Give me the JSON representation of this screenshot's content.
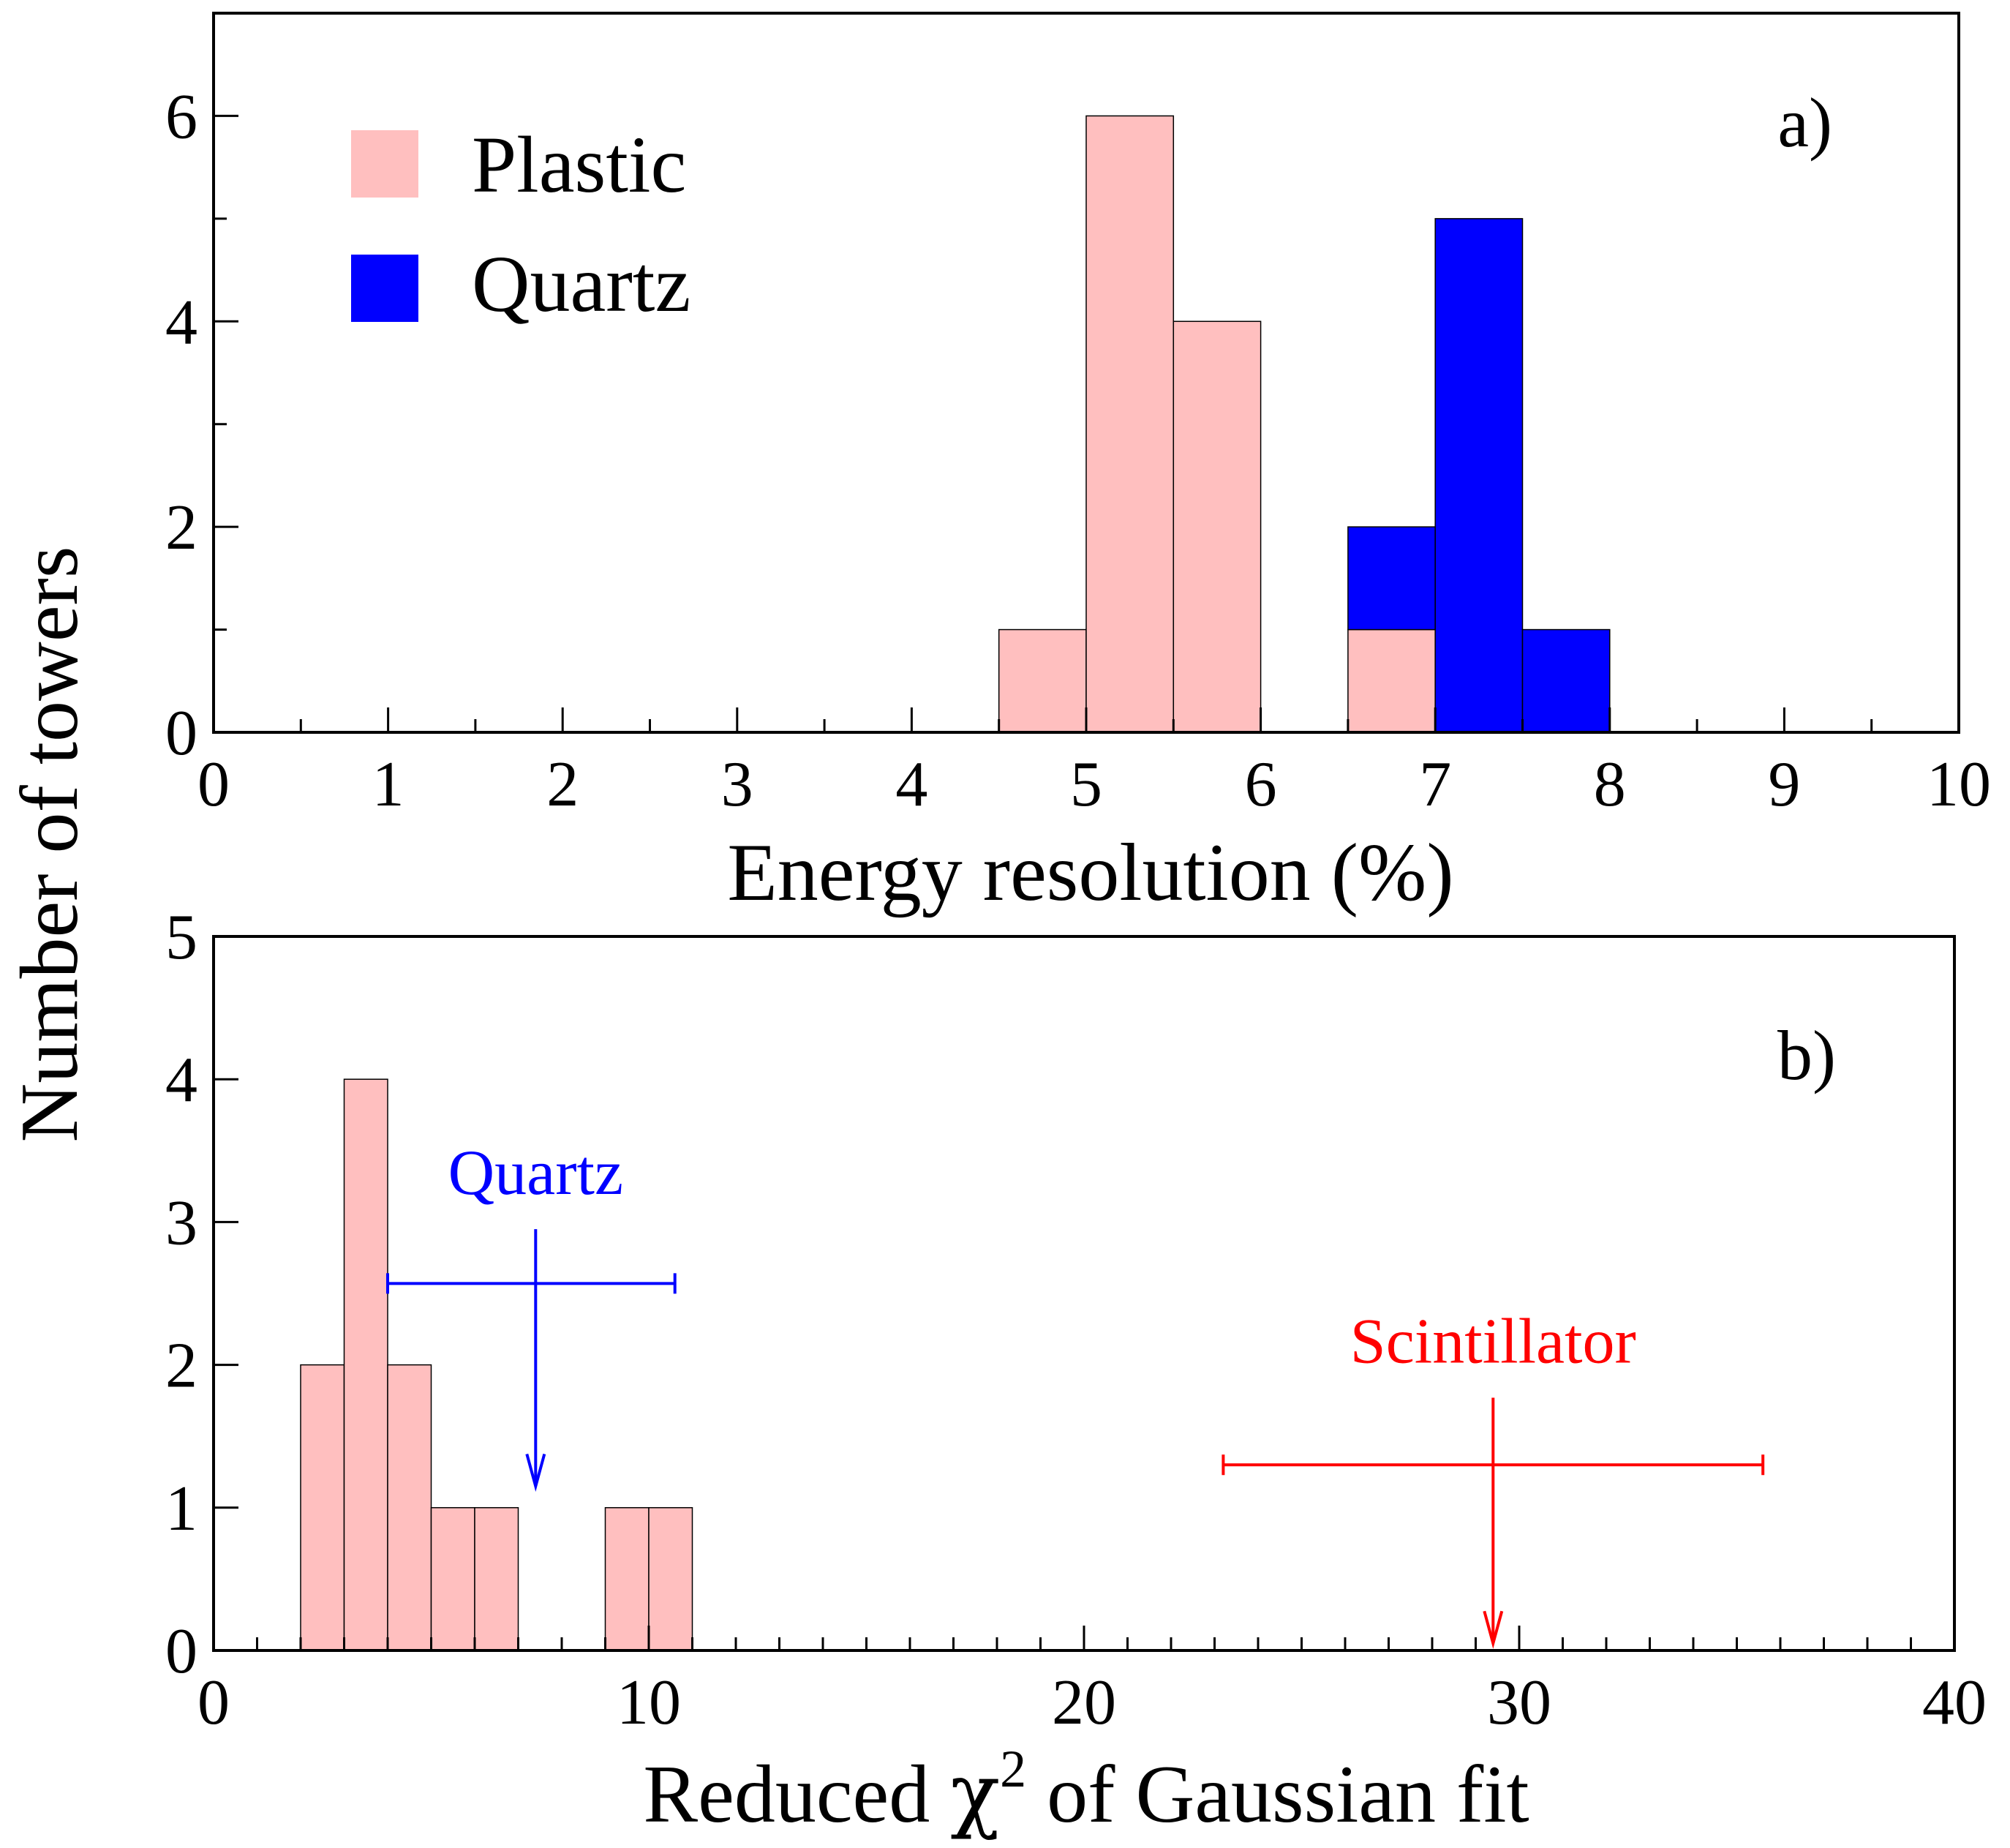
{
  "y_axis_shared_label": "Number of towers",
  "colors": {
    "plastic": "#FFBFBF",
    "quartz": "#0000FF",
    "quartz_annotation": "#0000FF",
    "scintillator_annotation": "#FF0000"
  },
  "chart_data": [
    {
      "id": "a",
      "type": "bar",
      "panel_label": "a)",
      "xlabel": "Energy resolution (%)",
      "ylabel": "Number of towers",
      "xlim": [
        0,
        10
      ],
      "ylim": [
        0,
        7
      ],
      "xticks": [
        0,
        1,
        2,
        3,
        4,
        5,
        6,
        7,
        8,
        9,
        10
      ],
      "xtick_labels": [
        "0",
        "1",
        "2",
        "3",
        "4",
        "5",
        "6",
        "7",
        "8",
        "9",
        "10"
      ],
      "yticks": [
        0,
        2,
        4,
        6
      ],
      "ytick_labels": [
        "0",
        "2",
        "4",
        "6"
      ],
      "bin_width": 0.5,
      "stacked": true,
      "legend": {
        "position": "top-left",
        "entries": [
          "Plastic",
          "Quartz"
        ]
      },
      "series": [
        {
          "name": "Plastic",
          "color": "#FFBFBF",
          "bins": [
            {
              "x": [
                4.5,
                5.0
              ],
              "count": 1
            },
            {
              "x": [
                5.0,
                5.5
              ],
              "count": 6
            },
            {
              "x": [
                5.5,
                6.0
              ],
              "count": 4
            },
            {
              "x": [
                6.5,
                7.0
              ],
              "count": 1
            }
          ]
        },
        {
          "name": "Quartz",
          "color": "#0000FF",
          "bins": [
            {
              "x": [
                6.5,
                7.0
              ],
              "count": 1
            },
            {
              "x": [
                7.0,
                7.5
              ],
              "count": 5
            },
            {
              "x": [
                7.5,
                8.0
              ],
              "count": 1
            }
          ]
        }
      ]
    },
    {
      "id": "b",
      "type": "bar",
      "panel_label": "b)",
      "xlabel_parts": [
        "Reduced ",
        "χ",
        "2",
        " of Gaussian fit"
      ],
      "ylabel": "Number of towers",
      "xlim": [
        0,
        40
      ],
      "ylim": [
        0,
        5
      ],
      "xticks": [
        0,
        10,
        20,
        30,
        40
      ],
      "xtick_labels": [
        "0",
        "10",
        "20",
        "30",
        "40"
      ],
      "yticks": [
        0,
        1,
        2,
        3,
        4,
        5
      ],
      "ytick_labels": [
        "0",
        "1",
        "2",
        "3",
        "4",
        "5"
      ],
      "bin_width": 1,
      "series": [
        {
          "name": "Plastic",
          "color": "#FFBFBF",
          "bins": [
            {
              "x": [
                2,
                3
              ],
              "count": 2
            },
            {
              "x": [
                3,
                4
              ],
              "count": 4
            },
            {
              "x": [
                4,
                5
              ],
              "count": 2
            },
            {
              "x": [
                5,
                6
              ],
              "count": 1
            },
            {
              "x": [
                6,
                7
              ],
              "count": 1
            },
            {
              "x": [
                9,
                10
              ],
              "count": 1
            },
            {
              "x": [
                10,
                11
              ],
              "count": 1
            }
          ]
        }
      ],
      "annotations": [
        {
          "label": "Quartz",
          "color": "#0000FF",
          "x": 7.4,
          "x_err": [
            4.0,
            10.6
          ],
          "y_bar": 2.57,
          "arrow_from": 2.95,
          "arrow_to": 1.15
        },
        {
          "label": "Scintillator",
          "color": "#FF0000",
          "x": 29.4,
          "x_err": [
            23.2,
            35.6
          ],
          "y_bar": 1.3,
          "arrow_from": 1.77,
          "arrow_to": 0.05
        }
      ]
    }
  ]
}
